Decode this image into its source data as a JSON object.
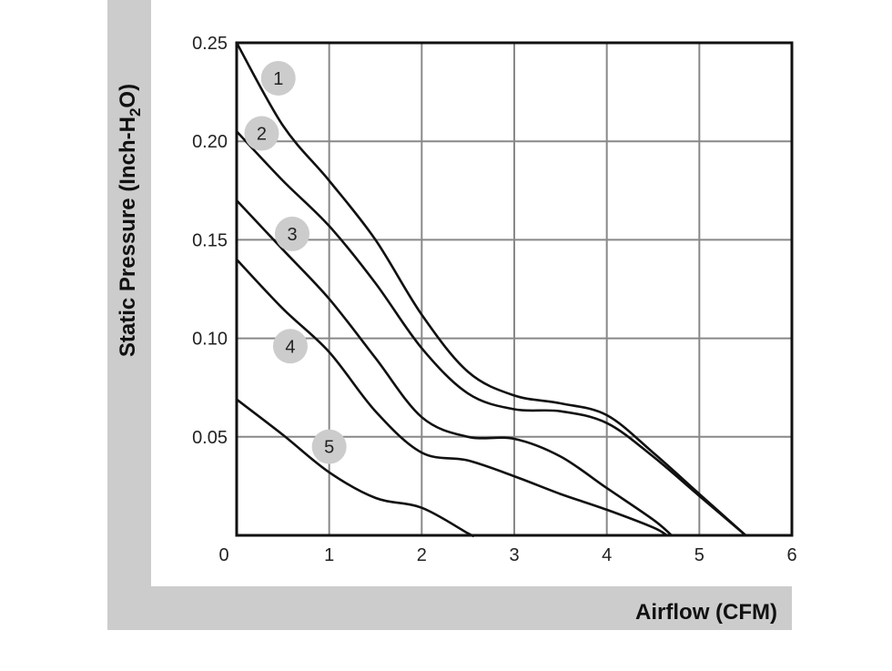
{
  "chart_data": {
    "type": "line",
    "title": "",
    "xlabel": "Airflow (CFM)",
    "ylabel": {
      "main": "Static Pressure (Inch-H",
      "sub": "2",
      "tail": "O)"
    },
    "xlim": [
      0,
      6
    ],
    "ylim": [
      0,
      0.25
    ],
    "x_ticks": [
      "0",
      "1",
      "2",
      "3",
      "4",
      "5",
      "6"
    ],
    "y_ticks": [
      "0.05",
      "0.10",
      "0.15",
      "0.20",
      "0.25"
    ],
    "grid": true,
    "colors": {
      "line": "#111111",
      "grid": "#888888",
      "frame_band": "#cccccc",
      "badge": "#cccccc"
    },
    "series": [
      {
        "label": "1",
        "label_at": [
          0.45,
          0.232
        ],
        "points": [
          [
            0,
            0.25
          ],
          [
            0.5,
            0.208
          ],
          [
            1,
            0.18
          ],
          [
            1.5,
            0.15
          ],
          [
            2,
            0.112
          ],
          [
            2.5,
            0.083
          ],
          [
            3,
            0.071
          ],
          [
            3.5,
            0.067
          ],
          [
            4,
            0.061
          ],
          [
            4.5,
            0.042
          ],
          [
            5,
            0.021
          ],
          [
            5.5,
            0.0
          ]
        ]
      },
      {
        "label": "2",
        "label_at": [
          0.27,
          0.204
        ],
        "points": [
          [
            0,
            0.205
          ],
          [
            0.5,
            0.18
          ],
          [
            1,
            0.157
          ],
          [
            1.5,
            0.128
          ],
          [
            2,
            0.095
          ],
          [
            2.5,
            0.072
          ],
          [
            3,
            0.064
          ],
          [
            3.5,
            0.063
          ],
          [
            4,
            0.057
          ],
          [
            4.5,
            0.04
          ],
          [
            5,
            0.02
          ],
          [
            5.5,
            0.0
          ]
        ]
      },
      {
        "label": "3",
        "label_at": [
          0.6,
          0.153
        ],
        "points": [
          [
            0,
            0.17
          ],
          [
            0.5,
            0.145
          ],
          [
            1,
            0.12
          ],
          [
            1.5,
            0.09
          ],
          [
            2,
            0.06
          ],
          [
            2.5,
            0.05
          ],
          [
            3,
            0.049
          ],
          [
            3.5,
            0.04
          ],
          [
            4,
            0.024
          ],
          [
            4.5,
            0.008
          ],
          [
            4.7,
            0.0
          ]
        ]
      },
      {
        "label": "4",
        "label_at": [
          0.58,
          0.096
        ],
        "points": [
          [
            0,
            0.14
          ],
          [
            0.5,
            0.115
          ],
          [
            1,
            0.093
          ],
          [
            1.5,
            0.063
          ],
          [
            2,
            0.042
          ],
          [
            2.5,
            0.038
          ],
          [
            3,
            0.03
          ],
          [
            3.5,
            0.021
          ],
          [
            4,
            0.013
          ],
          [
            4.5,
            0.004
          ],
          [
            4.65,
            0.0
          ]
        ]
      },
      {
        "label": "5",
        "label_at": [
          1.0,
          0.045
        ],
        "points": [
          [
            0,
            0.069
          ],
          [
            0.5,
            0.051
          ],
          [
            1,
            0.032
          ],
          [
            1.5,
            0.019
          ],
          [
            2,
            0.014
          ],
          [
            2.5,
            0.001
          ],
          [
            2.55,
            0.0
          ]
        ]
      }
    ]
  }
}
